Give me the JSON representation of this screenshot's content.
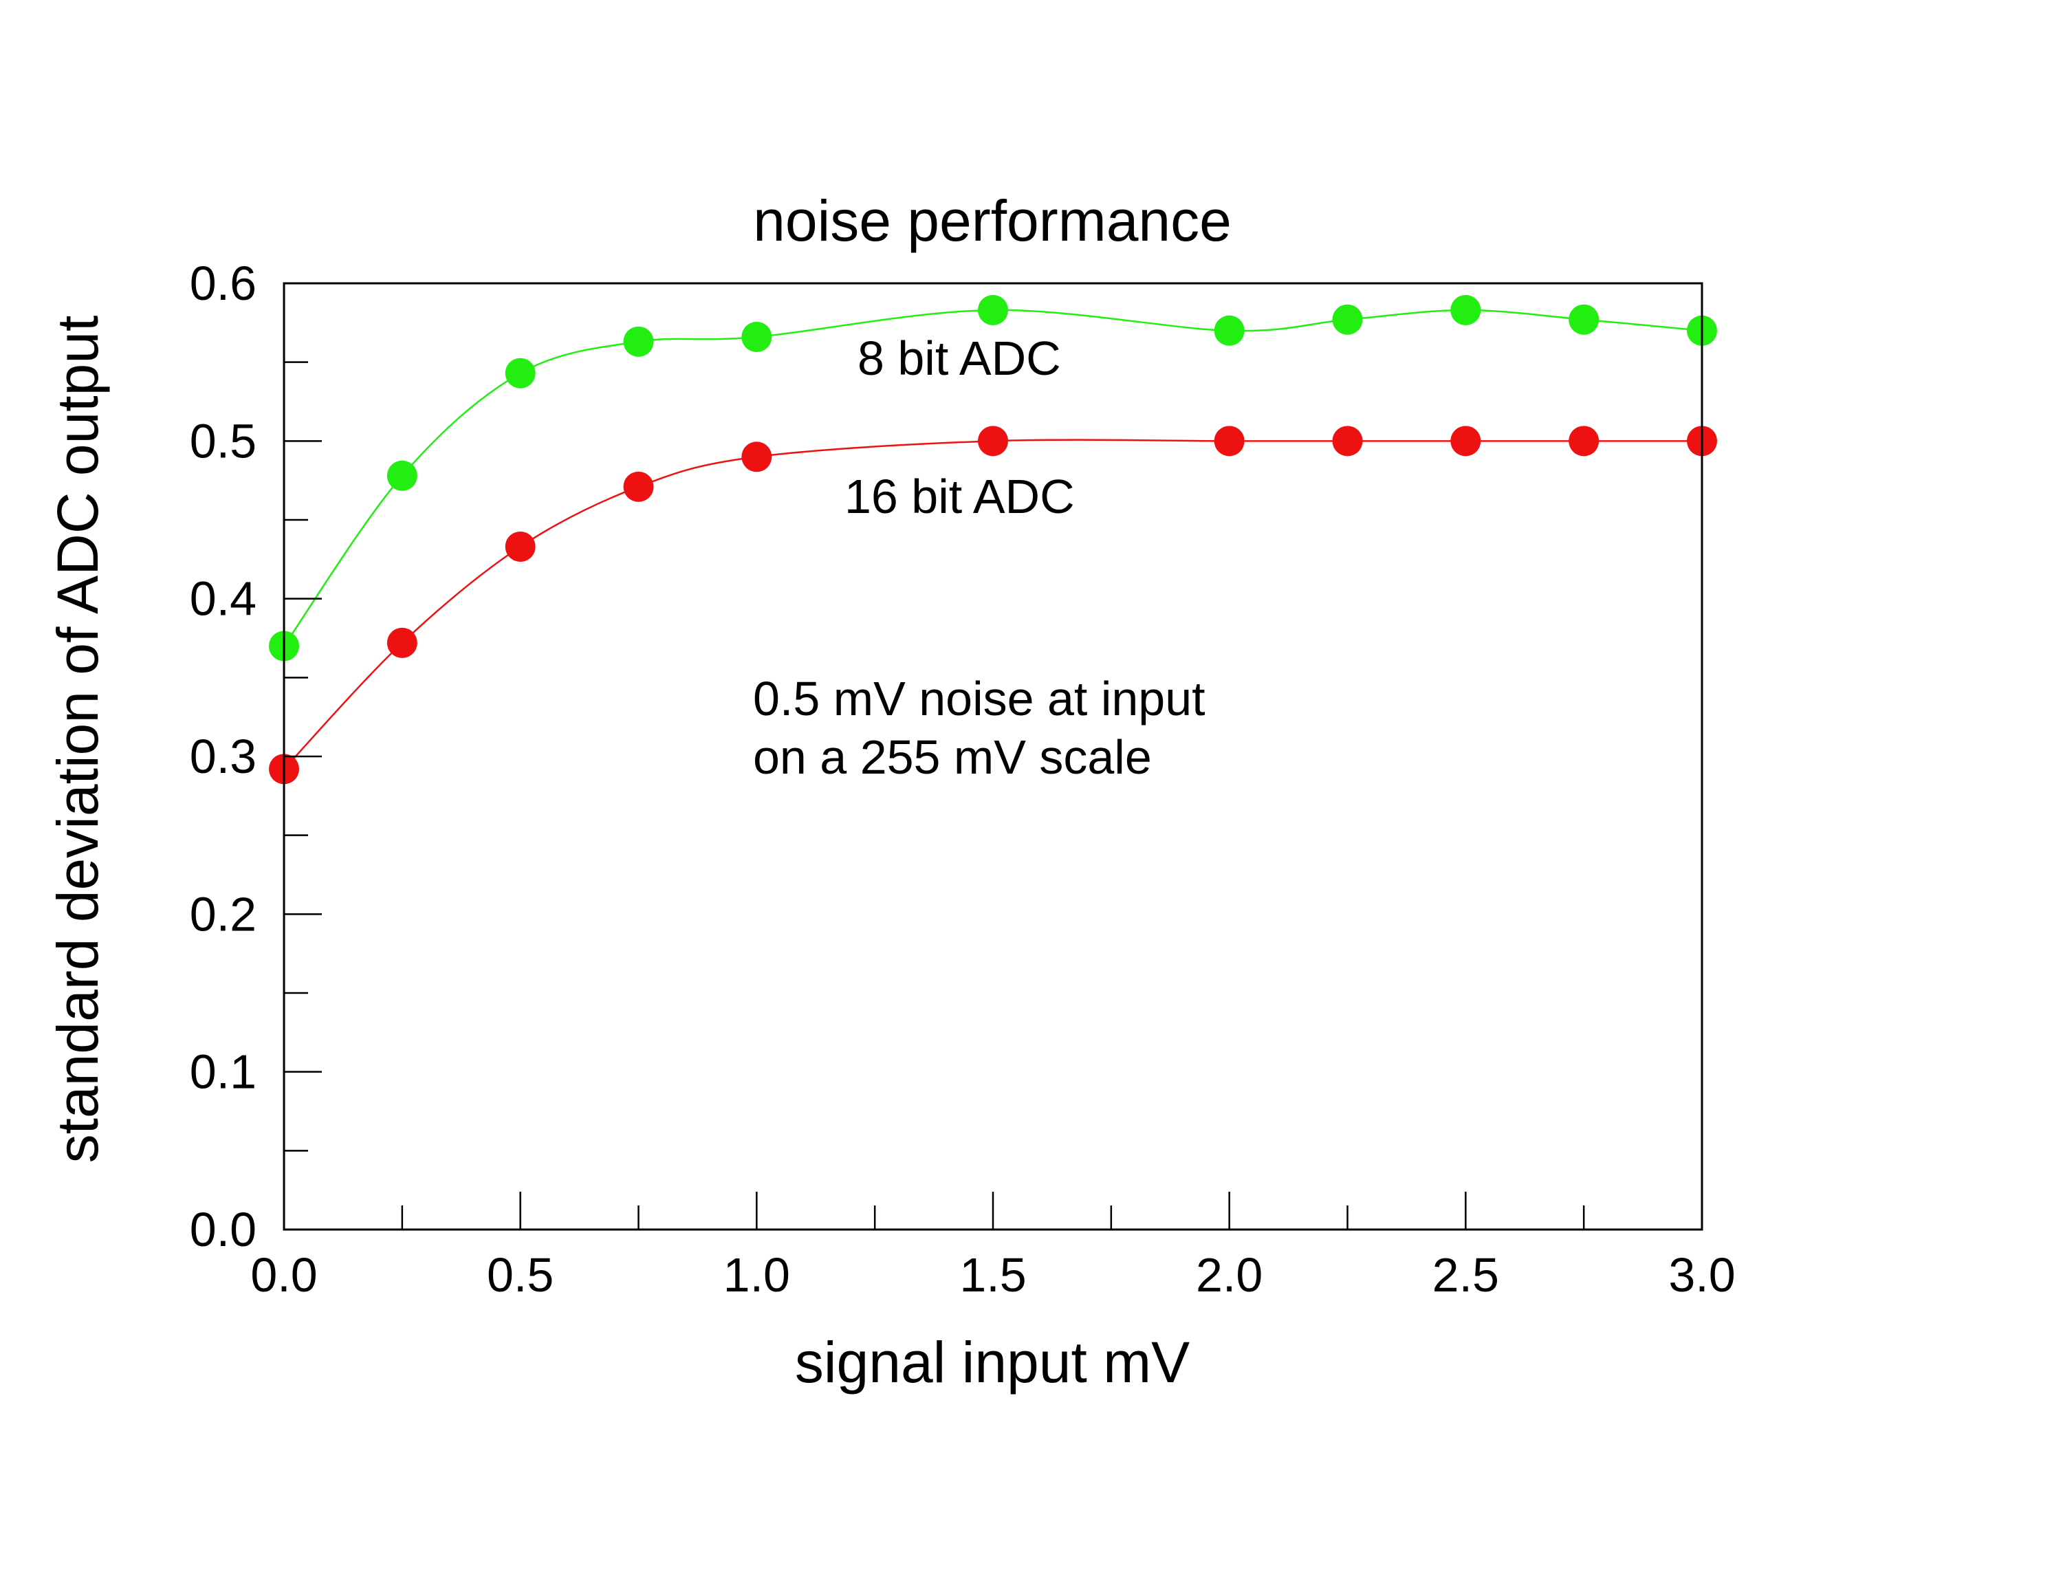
{
  "chart_data": {
    "type": "line",
    "title": "noise performance",
    "xlabel": "signal input mV",
    "ylabel": "standard deviation of ADC output",
    "xlim": [
      0,
      3
    ],
    "ylim": [
      0,
      0.6
    ],
    "x_ticks": [
      "0.0",
      "0.5",
      "1.0",
      "1.5",
      "2.0",
      "2.5",
      "3.0"
    ],
    "y_ticks": [
      "0.0",
      "0.1",
      "0.2",
      "0.3",
      "0.4",
      "0.5",
      "0.6"
    ],
    "grid": false,
    "series": [
      {
        "name": "8 bit ADC",
        "color": "#22ee11",
        "x": [
          0,
          0.25,
          0.5,
          0.75,
          1.0,
          1.5,
          2.0,
          2.25,
          2.5,
          2.75,
          3.0
        ],
        "y": [
          0.37,
          0.478,
          0.543,
          0.563,
          0.566,
          0.583,
          0.57,
          0.577,
          0.583,
          0.577,
          0.57
        ]
      },
      {
        "name": "16 bit ADC",
        "color": "#ee1111",
        "x": [
          0,
          0.25,
          0.5,
          0.75,
          1.0,
          1.5,
          2.0,
          2.25,
          2.5,
          2.75,
          3.0
        ],
        "y": [
          0.292,
          0.372,
          0.433,
          0.471,
          0.49,
          0.5,
          0.5,
          0.5,
          0.5,
          0.5,
          0.5
        ]
      }
    ],
    "annotations": [
      "0.5 mV noise at input",
      "on a 255 mV scale"
    ]
  }
}
